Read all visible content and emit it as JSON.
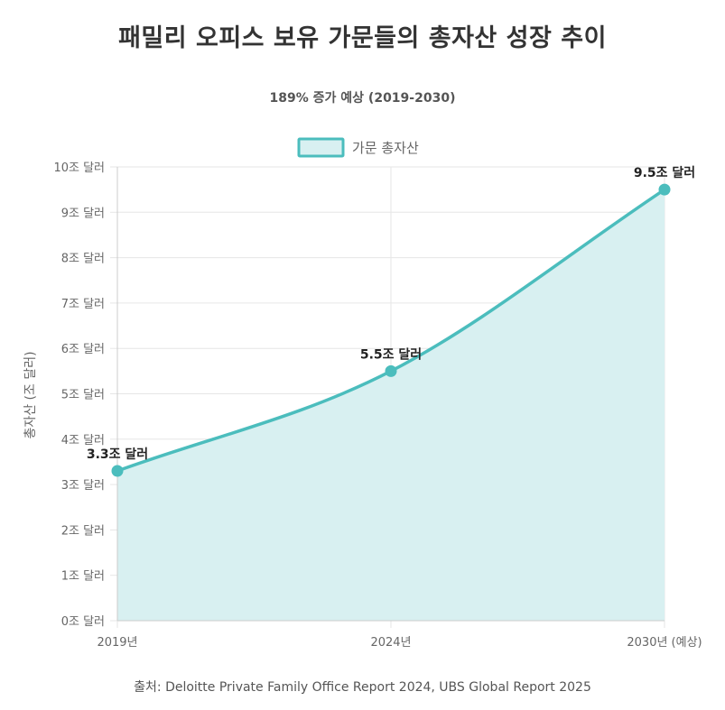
{
  "title": "패밀리 오피스 보유 가문들의 총자산 성장 추이",
  "subtitle": "189% 증가 예상 (2019-2030)",
  "source": "출처: Deloitte Private Family Office Report 2024, UBS Global Report 2025",
  "colors": {
    "line": "#4bbdbd",
    "fill": "#d8f0f1",
    "grid": "#e6e6e6",
    "axis": "#cccccc",
    "text": "#666666"
  },
  "chart_data": {
    "type": "area",
    "x": [
      "2019년",
      "2024년",
      "2030년 (예상)"
    ],
    "ylim": [
      0,
      10
    ],
    "yticks": [
      "0조 달러",
      "1조 달러",
      "2조 달러",
      "3조 달러",
      "4조 달러",
      "5조 달러",
      "6조 달러",
      "7조 달러",
      "8조 달러",
      "9조 달러",
      "10조 달러"
    ],
    "ylabel": "총자산 (조 달러)",
    "xlabel": "",
    "legend_position": "top",
    "grid": true,
    "series": [
      {
        "name": "가문 총자산",
        "values": [
          3.3,
          5.5,
          9.5
        ],
        "data_labels": [
          "3.3조 달러",
          "5.5조 달러",
          "9.5조 달러"
        ]
      }
    ]
  }
}
